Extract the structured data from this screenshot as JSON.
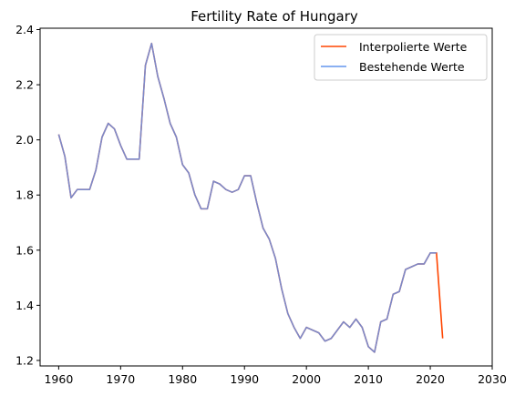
{
  "chart_data": {
    "type": "line",
    "title": "Fertility Rate of Hungary",
    "xlabel": "",
    "ylabel": "",
    "xlim": [
      1957,
      2030
    ],
    "ylim": [
      1.18,
      2.405
    ],
    "xticks": [
      1960,
      1970,
      1980,
      1990,
      2000,
      2010,
      2020,
      2030
    ],
    "yticks": [
      1.2,
      1.4,
      1.6,
      1.8,
      2.0,
      2.2,
      2.4
    ],
    "ytick_labels": [
      "1.2",
      "1.4",
      "1.6",
      "1.8",
      "2.0",
      "2.2",
      "2.4"
    ],
    "grid": false,
    "legend_position": "top-right",
    "series": [
      {
        "name": "Interpolierte Werte",
        "color": "#ff4500",
        "x": [
          1960,
          1961,
          1962,
          1963,
          1964,
          1965,
          1966,
          1967,
          1968,
          1969,
          1970,
          1971,
          1972,
          1973,
          1974,
          1975,
          1976,
          1977,
          1978,
          1979,
          1980,
          1981,
          1982,
          1983,
          1984,
          1985,
          1986,
          1987,
          1988,
          1989,
          1990,
          1991,
          1992,
          1993,
          1994,
          1995,
          1996,
          1997,
          1998,
          1999,
          2000,
          2001,
          2002,
          2003,
          2004,
          2005,
          2006,
          2007,
          2008,
          2009,
          2010,
          2011,
          2012,
          2013,
          2014,
          2015,
          2016,
          2017,
          2018,
          2019,
          2020,
          2021,
          2022
        ],
        "values": [
          2.02,
          1.94,
          1.79,
          1.82,
          1.82,
          1.82,
          1.89,
          2.01,
          2.06,
          2.04,
          1.98,
          1.93,
          1.93,
          1.93,
          2.27,
          2.35,
          2.23,
          2.15,
          2.06,
          2.01,
          1.91,
          1.88,
          1.8,
          1.75,
          1.75,
          1.85,
          1.84,
          1.82,
          1.81,
          1.82,
          1.87,
          1.87,
          1.77,
          1.68,
          1.64,
          1.57,
          1.46,
          1.37,
          1.32,
          1.28,
          1.32,
          1.31,
          1.3,
          1.27,
          1.28,
          1.31,
          1.34,
          1.32,
          1.35,
          1.32,
          1.25,
          1.23,
          1.34,
          1.35,
          1.44,
          1.45,
          1.53,
          1.54,
          1.55,
          1.55,
          1.59,
          1.59,
          1.28
        ]
      },
      {
        "name": "Bestehende Werte",
        "color": "#6495ed",
        "x": [
          1960,
          1961,
          1962,
          1963,
          1964,
          1965,
          1966,
          1967,
          1968,
          1969,
          1970,
          1971,
          1972,
          1973,
          1974,
          1975,
          1976,
          1977,
          1978,
          1979,
          1980,
          1981,
          1982,
          1983,
          1984,
          1985,
          1986,
          1987,
          1988,
          1989,
          1990,
          1991,
          1992,
          1993,
          1994,
          1995,
          1996,
          1997,
          1998,
          1999,
          2000,
          2001,
          2002,
          2003,
          2004,
          2005,
          2006,
          2007,
          2008,
          2009,
          2010,
          2011,
          2012,
          2013,
          2014,
          2015,
          2016,
          2017,
          2018,
          2019,
          2020,
          2021
        ],
        "values": [
          2.02,
          1.94,
          1.79,
          1.82,
          1.82,
          1.82,
          1.89,
          2.01,
          2.06,
          2.04,
          1.98,
          1.93,
          1.93,
          1.93,
          2.27,
          2.35,
          2.23,
          2.15,
          2.06,
          2.01,
          1.91,
          1.88,
          1.8,
          1.75,
          1.75,
          1.85,
          1.84,
          1.82,
          1.81,
          1.82,
          1.87,
          1.87,
          1.77,
          1.68,
          1.64,
          1.57,
          1.46,
          1.37,
          1.32,
          1.28,
          1.32,
          1.31,
          1.3,
          1.27,
          1.28,
          1.31,
          1.34,
          1.32,
          1.35,
          1.32,
          1.25,
          1.23,
          1.34,
          1.35,
          1.44,
          1.45,
          1.53,
          1.54,
          1.55,
          1.55,
          1.59,
          1.59
        ]
      }
    ]
  }
}
